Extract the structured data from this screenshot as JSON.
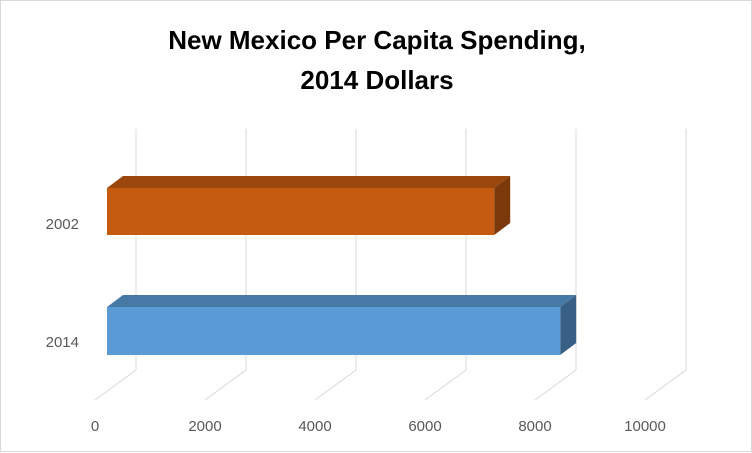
{
  "chart_data": {
    "type": "bar",
    "orientation": "horizontal",
    "style": "3d",
    "title_lines": [
      "New Mexico Per Capita Spending,",
      "2014 Dollars"
    ],
    "categories": [
      "2002",
      "2014"
    ],
    "values": [
      7040,
      8240
    ],
    "colors": [
      "#C55A11",
      "#5B9BD5"
    ],
    "xlabel": "",
    "ylabel": "",
    "xlim": [
      0,
      10000
    ],
    "xticks": [
      "0",
      "2000",
      "4000",
      "6000",
      "8000",
      "10000"
    ],
    "grid": true,
    "legend": "none"
  }
}
